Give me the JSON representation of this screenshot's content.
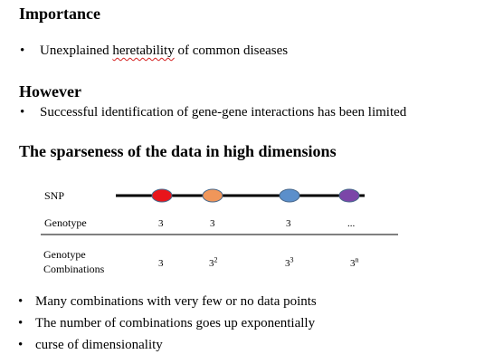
{
  "sections": {
    "importance": {
      "heading": "Importance",
      "bullet_before": "Unexplained ",
      "bullet_underlined": "heretability",
      "bullet_after": " of common diseases"
    },
    "however": {
      "heading": "However",
      "bullet": "Successful identification of gene-gene interactions has been limited"
    },
    "sparseness": {
      "heading": "The sparseness of the data in high dimensions"
    }
  },
  "diagram": {
    "snp_label": "SNP",
    "genotype_label": "Genotype",
    "combinations_label_line1": "Genotype",
    "combinations_label_line2": "Combinations",
    "snp_colors": [
      "#e8151b",
      "#f0965a",
      "#5b8fcb",
      "#7b46a8"
    ],
    "genotype_values": [
      "3",
      "3",
      "3",
      "..."
    ],
    "combinations": [
      {
        "base": "3",
        "exp": ""
      },
      {
        "base": "3",
        "exp": "2"
      },
      {
        "base": "3",
        "exp": "3"
      },
      {
        "base": "3",
        "exp": "n"
      }
    ]
  },
  "conclusions": [
    "Many combinations with very few or no data points",
    "The number of combinations goes up exponentially",
    "curse of dimensionality"
  ]
}
